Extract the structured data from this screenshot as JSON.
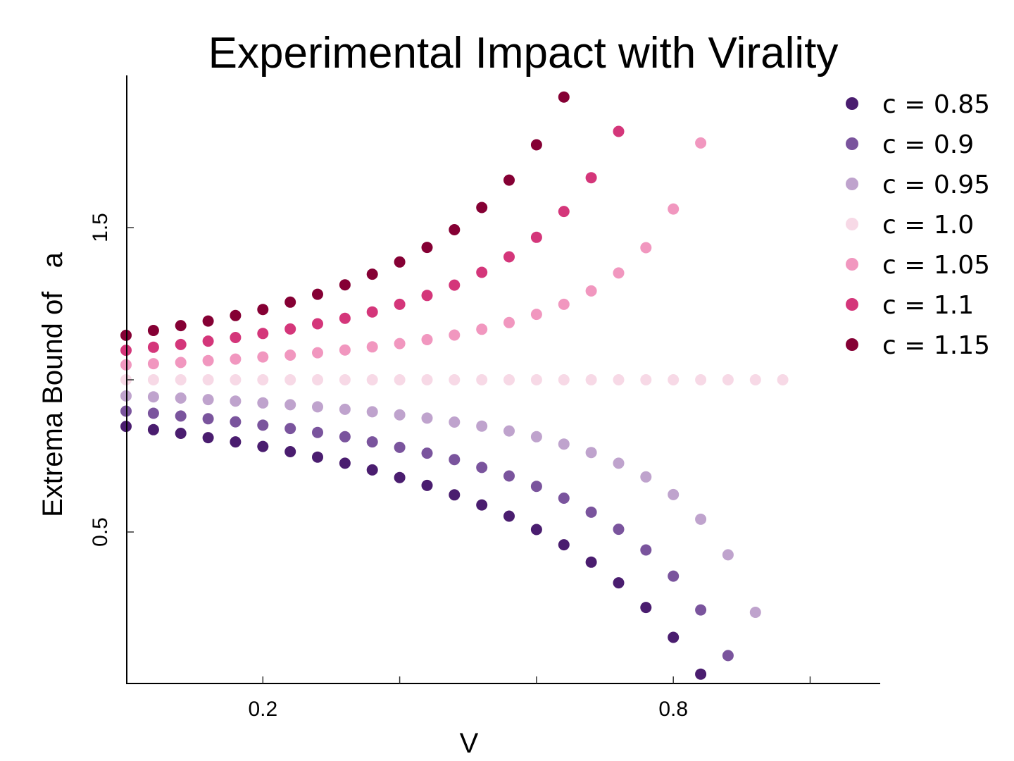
{
  "chart_data": {
    "type": "scatter",
    "title": "Experimental Impact with Virality",
    "xlabel": "V",
    "ylabel": "Extrema Bound of   a",
    "xlim": [
      0,
      1.1
    ],
    "ylim": [
      0,
      2.0
    ],
    "x_ticks": [
      0.2,
      0.4,
      0.6,
      0.8,
      1.0
    ],
    "x_tick_labels": {
      "0.2": "0.2",
      "0.8": "0.8"
    },
    "y_ticks": [
      0.5,
      1.0,
      1.5
    ],
    "y_tick_labels": {
      "0.5": "0.5",
      "1.5": "1.5"
    },
    "grid": false,
    "legend_position": "right",
    "x": [
      0,
      0.04,
      0.08,
      0.12,
      0.16,
      0.2,
      0.24,
      0.28,
      0.32,
      0.36,
      0.4,
      0.44,
      0.48,
      0.52,
      0.56,
      0.6,
      0.64,
      0.68,
      0.72,
      0.76,
      0.8,
      0.84,
      0.88,
      0.92,
      0.96
    ],
    "series": [
      {
        "name": "c = 0.85",
        "color": "#4a1d6f",
        "values": [
          0.847,
          0.836,
          0.824,
          0.81,
          0.796,
          0.781,
          0.764,
          0.746,
          0.726,
          0.704,
          0.679,
          0.653,
          0.622,
          0.589,
          0.552,
          0.508,
          0.458,
          0.401,
          0.333,
          0.252,
          0.154,
          0.033
        ]
      },
      {
        "name": "c = 0.9",
        "color": "#7a549d",
        "values": [
          0.897,
          0.89,
          0.881,
          0.872,
          0.862,
          0.851,
          0.84,
          0.827,
          0.813,
          0.796,
          0.778,
          0.759,
          0.738,
          0.712,
          0.684,
          0.65,
          0.611,
          0.565,
          0.509,
          0.441,
          0.355,
          0.244,
          0.094
        ]
      },
      {
        "name": "c = 0.95",
        "color": "#bfa3cd",
        "values": [
          0.947,
          0.944,
          0.94,
          0.935,
          0.93,
          0.924,
          0.918,
          0.911,
          0.903,
          0.895,
          0.885,
          0.874,
          0.861,
          0.848,
          0.832,
          0.813,
          0.789,
          0.761,
          0.726,
          0.681,
          0.623,
          0.542,
          0.425,
          0.236
        ]
      },
      {
        "name": "c = 1.0",
        "color": "#f7d9e6",
        "values": [
          1,
          1,
          1,
          1,
          1,
          1,
          1,
          1,
          1,
          1,
          1,
          1,
          1,
          1,
          1,
          1,
          1,
          1,
          1,
          1,
          1,
          1,
          1,
          1,
          1
        ]
      },
      {
        "name": "c = 1.05",
        "color": "#f197bf",
        "values": [
          1.049,
          1.053,
          1.057,
          1.063,
          1.068,
          1.075,
          1.081,
          1.089,
          1.098,
          1.108,
          1.119,
          1.132,
          1.147,
          1.166,
          1.188,
          1.215,
          1.248,
          1.292,
          1.351,
          1.434,
          1.561,
          1.778
        ]
      },
      {
        "name": "c = 1.1",
        "color": "#d4367a",
        "values": [
          1.097,
          1.107,
          1.116,
          1.127,
          1.139,
          1.152,
          1.167,
          1.184,
          1.202,
          1.223,
          1.248,
          1.277,
          1.311,
          1.353,
          1.404,
          1.468,
          1.553,
          1.664,
          1.816
        ]
      },
      {
        "name": "c = 1.15",
        "color": "#850034",
        "values": [
          1.146,
          1.162,
          1.178,
          1.193,
          1.211,
          1.231,
          1.255,
          1.281,
          1.312,
          1.347,
          1.387,
          1.435,
          1.493,
          1.566,
          1.656,
          1.772,
          1.929
        ]
      }
    ]
  }
}
